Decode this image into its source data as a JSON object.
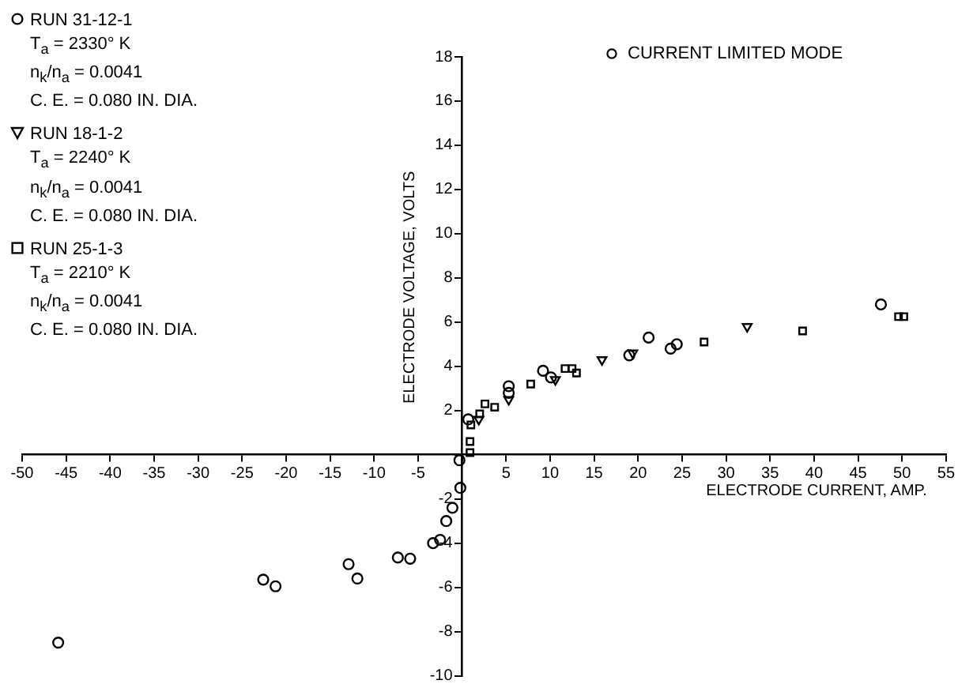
{
  "chart_data": {
    "type": "scatter",
    "xlabel": "ELECTRODE CURRENT, AMP.",
    "ylabel": "ELECTRODE VOLTAGE, VOLTS",
    "xlim": [
      -50,
      55
    ],
    "xticks": [
      -50,
      -45,
      -40,
      -35,
      -30,
      -25,
      -20,
      -15,
      -10,
      -5,
      {
        "value": 0,
        "label": null
      },
      5,
      10,
      15,
      20,
      25,
      30,
      35,
      40,
      45,
      50,
      55
    ],
    "ylim": [
      -10,
      18
    ],
    "yticks": [
      {
        "value": -10,
        "label": "-10"
      },
      -8,
      -6,
      -4,
      -2,
      {
        "value": 0,
        "label": null
      },
      2,
      4,
      6,
      8,
      10,
      12,
      14,
      16,
      18
    ],
    "grid": false,
    "legend": "top left",
    "annotations": [
      "T$_{a}$ = 2330° K",
      "n$_{k}$/n$_{a}$ = 0.0041",
      "C. E. = 0.080 IN. DIA.",
      "T$_{a}$ = 2240° K",
      "n$_{k}$/n$_{a}$ = 0.0041",
      "C. E. = 0.080 IN. DIA.",
      "T$_{a}$ = 2210° K",
      "n$_{k}$/n$_{a}$ = 0.0041",
      "C. E. = 0.080 IN. DIA.",
      "CURRENT LIMITED MODE"
    ],
    "series": [
      {
        "name": "RUN 31-12-1",
        "color": "#000000",
        "marker": "circle",
        "x": [
          -45.9,
          -22.6,
          -21.2,
          -12.9,
          -11.9,
          -7.3,
          -5.9,
          -3.3,
          -2.5,
          -1.8,
          -1.1,
          -0.2,
          -0.3,
          0.7,
          5.3,
          5.3,
          9.2,
          10.1,
          19.0,
          21.2,
          23.7,
          24.4,
          47.6
        ],
        "values": [
          -8.5,
          -5.65,
          -5.95,
          -4.95,
          -5.6,
          -4.65,
          -4.7,
          -4.0,
          -3.85,
          -3.0,
          -2.4,
          -1.5,
          -0.25,
          1.6,
          3.1,
          2.8,
          3.8,
          3.5,
          4.5,
          5.3,
          4.8,
          5.0,
          6.8
        ]
      },
      {
        "name": "RUN 18-1-2",
        "color": "#000000",
        "marker": "triangle",
        "x": [
          1.9,
          5.3,
          10.6,
          15.9,
          19.4,
          32.4
        ],
        "values": [
          1.6,
          2.5,
          3.4,
          4.3,
          4.6,
          5.8
        ]
      },
      {
        "name": "RUN 25-1-3",
        "color": "#000000",
        "marker": "square",
        "x": [
          0.9,
          0.9,
          1.0,
          2.0,
          2.6,
          3.7,
          7.8,
          11.7,
          12.5,
          13.0,
          27.5,
          38.7,
          49.6,
          50.2
        ],
        "values": [
          0.1,
          0.6,
          1.35,
          1.85,
          2.3,
          2.15,
          3.2,
          3.9,
          3.9,
          3.7,
          5.1,
          5.6,
          6.25,
          6.25
        ]
      }
    ]
  }
}
